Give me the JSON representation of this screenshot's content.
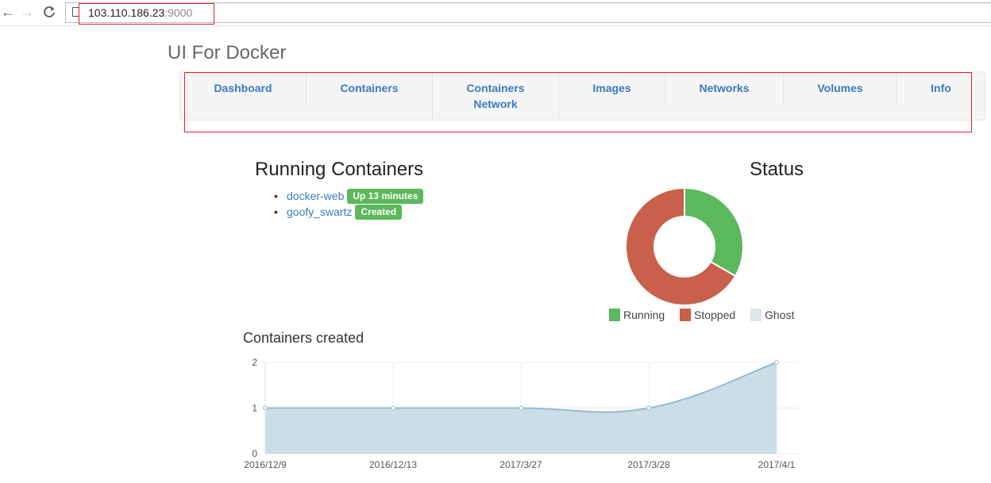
{
  "browser": {
    "url_host": "103.110.186.23",
    "url_port": ":9000",
    "back_glyph": "←",
    "forward_glyph": "→",
    "reload_glyph": "C"
  },
  "app": {
    "title": "UI For Docker"
  },
  "nav": {
    "items": [
      {
        "label": "Dashboard"
      },
      {
        "label": "Containers"
      },
      {
        "label_line1": "Containers",
        "label_line2": "Network"
      },
      {
        "label": "Images"
      },
      {
        "label": "Networks"
      },
      {
        "label": "Volumes"
      },
      {
        "label": "Info"
      }
    ]
  },
  "running": {
    "heading": "Running Containers",
    "containers": [
      {
        "name": "docker-web",
        "status": "Up 13 minutes"
      },
      {
        "name": "goofy_swartz",
        "status": "Created"
      }
    ]
  },
  "status": {
    "heading": "Status",
    "legend": [
      {
        "label": "Running",
        "color": "#5cb85c"
      },
      {
        "label": "Stopped",
        "color": "#c9604b"
      },
      {
        "label": "Ghost",
        "color": "#dde7e9"
      }
    ],
    "chart_data": {
      "type": "pie",
      "categories": [
        "Running",
        "Stopped",
        "Ghost"
      ],
      "values": [
        1,
        2,
        0
      ],
      "colors": [
        "#5cb85c",
        "#c9604b",
        "#dde7e9"
      ],
      "donut": true
    }
  },
  "created": {
    "heading": "Containers created",
    "chart_data": {
      "type": "area",
      "x": [
        "2016/12/9",
        "2016/12/13",
        "2017/3/27",
        "2017/3/28",
        "2017/4/1"
      ],
      "values": [
        1,
        1,
        1,
        1,
        2
      ],
      "ylim": [
        0,
        2
      ],
      "yticks": [
        "0",
        "1",
        "2"
      ],
      "fill": "#c8dbe5",
      "stroke": "#97b9cc",
      "grid": true
    }
  }
}
